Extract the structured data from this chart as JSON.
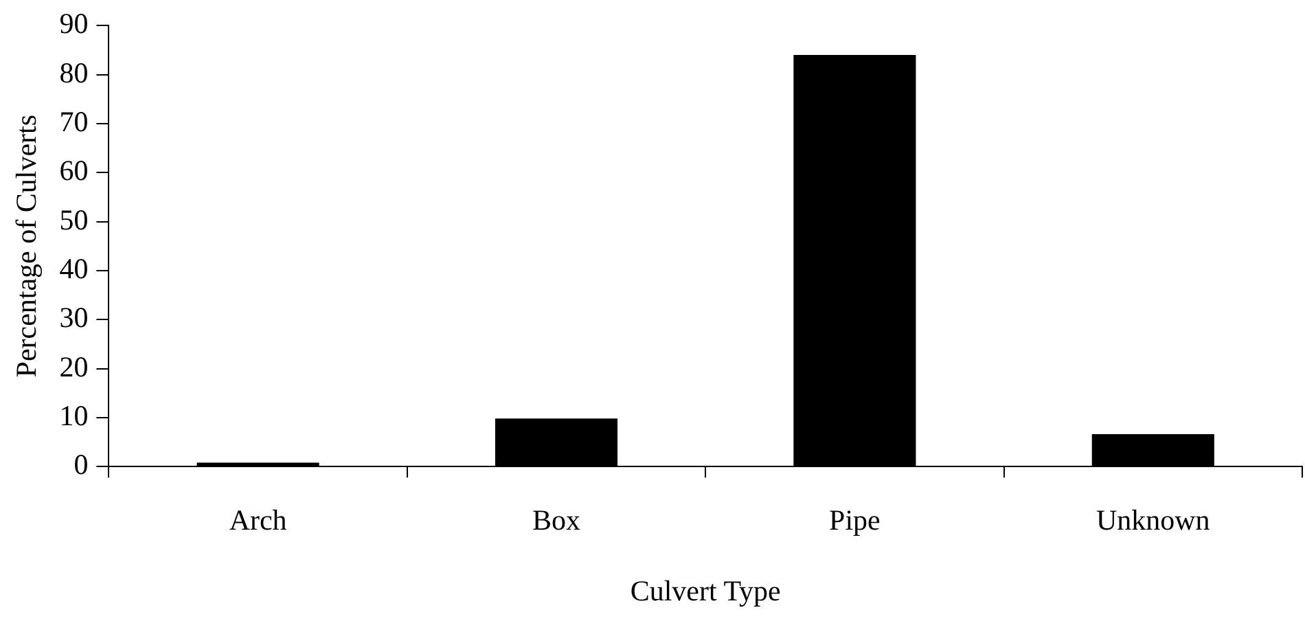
{
  "chart_data": {
    "type": "bar",
    "xlabel": "Culvert Type",
    "ylabel": "Percentage of Culverts",
    "categories": [
      "Arch",
      "Box",
      "Pipe",
      "Unknown"
    ],
    "values": [
      0.8,
      9.8,
      84,
      6.6
    ],
    "color": "#000000",
    "ylim": [
      0,
      90
    ],
    "yticks": [
      0,
      10,
      20,
      30,
      40,
      50,
      60,
      70,
      80,
      90
    ],
    "grid": false,
    "legend": false
  }
}
